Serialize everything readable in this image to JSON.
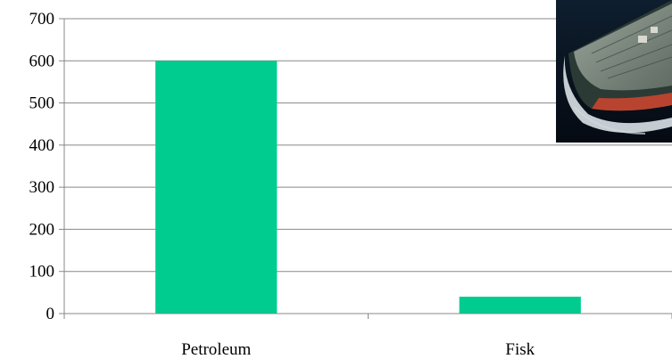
{
  "chart_data": {
    "type": "bar",
    "categories": [
      "Petroleum",
      "Fisk"
    ],
    "values": [
      600,
      40
    ],
    "ylim": [
      0,
      700
    ],
    "yticks": [
      0,
      100,
      200,
      300,
      400,
      500,
      600,
      700
    ],
    "grid": true,
    "legend": "none",
    "bar_color": "#00cc8f",
    "grid_color": "#888888"
  },
  "photo": {
    "subject": "tanker-ship"
  }
}
